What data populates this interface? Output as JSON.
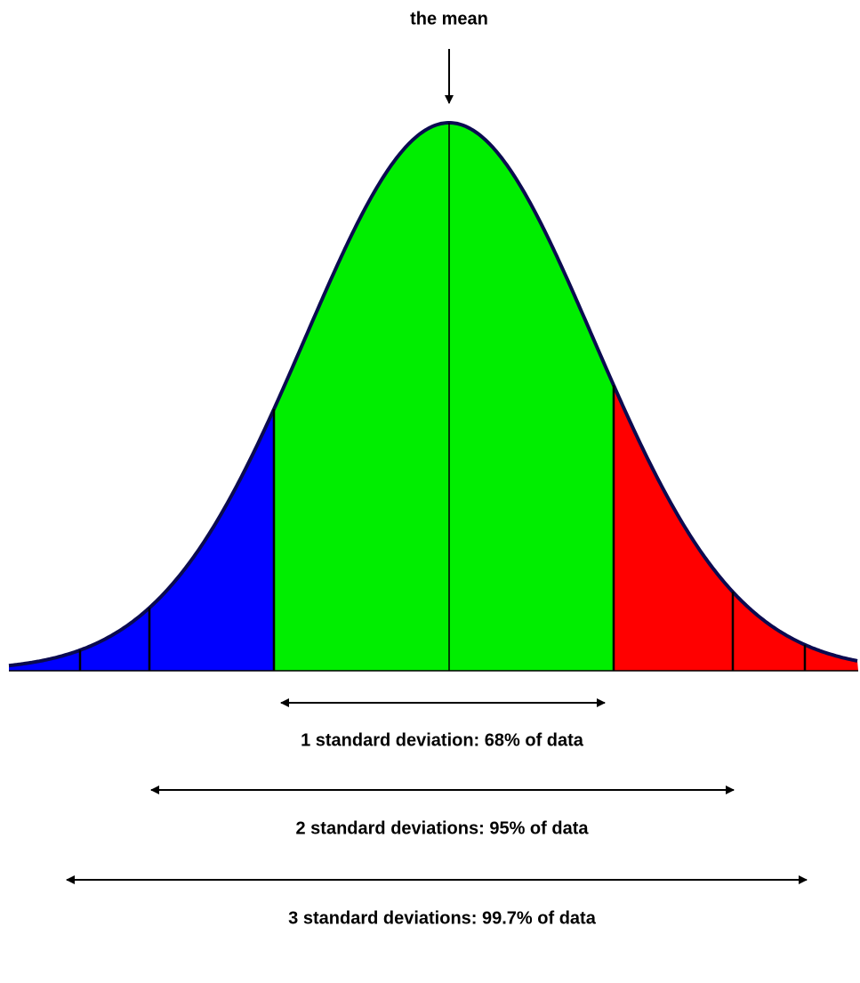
{
  "mean_label": "the mean",
  "ranges": [
    {
      "label": "1 standard deviation: 68% of data"
    },
    {
      "label": "2 standard deviations: 95% of data"
    },
    {
      "label": "3 standard deviations: 99.7% of data"
    }
  ]
}
